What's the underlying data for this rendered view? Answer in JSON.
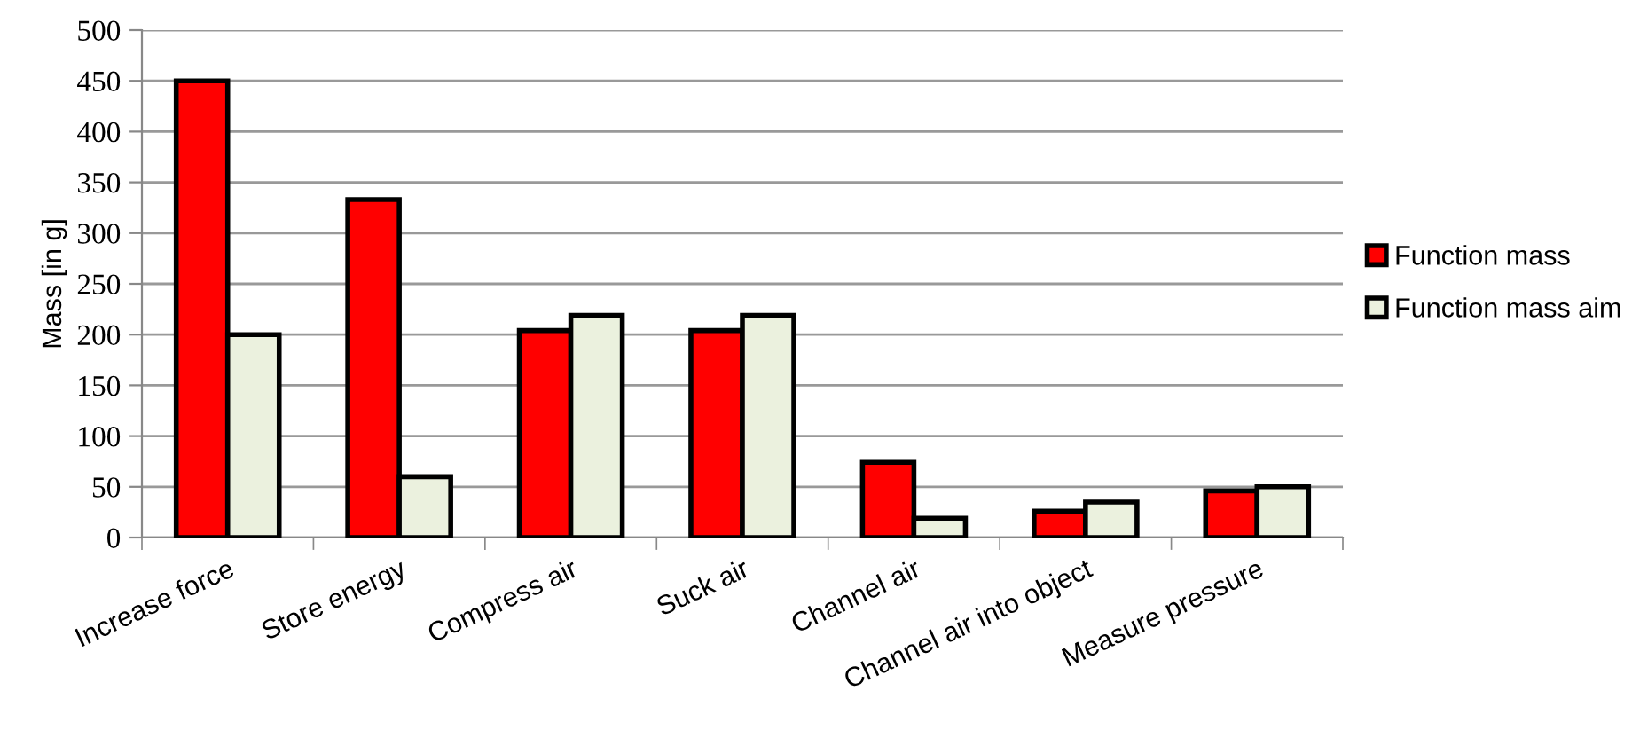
{
  "chart_data": {
    "type": "bar",
    "ylabel": "Mass [in g]",
    "categories": [
      "Increase force",
      "Store energy",
      "Compress air",
      "Suck air",
      "Channel air",
      "Channel air into object",
      "Measure pressure"
    ],
    "series": [
      {
        "name": "Function mass",
        "color": "#ff0000",
        "values": [
          450,
          333,
          204,
          204,
          74,
          26,
          46
        ]
      },
      {
        "name": "Function mass aim",
        "color": "#ebf1de",
        "values": [
          200,
          60,
          219,
          219,
          19,
          35,
          50
        ]
      }
    ],
    "ylim": [
      0,
      500
    ],
    "yticks": [
      0,
      50,
      100,
      150,
      200,
      250,
      300,
      350,
      400,
      450,
      500
    ],
    "grid": "y",
    "legend": "right"
  }
}
